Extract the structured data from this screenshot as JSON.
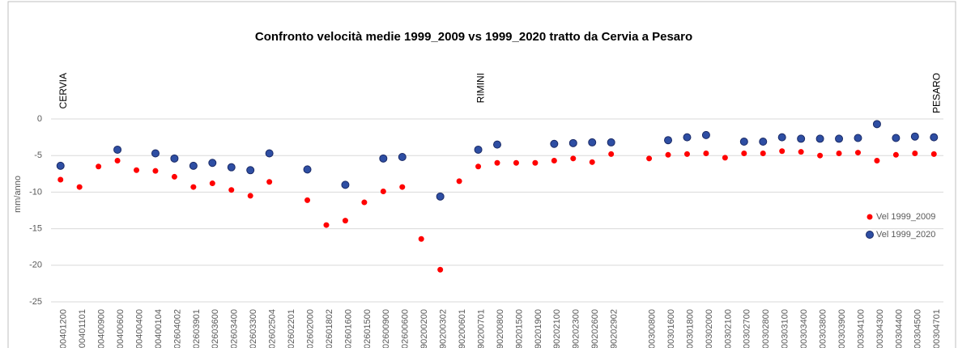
{
  "chart_data": {
    "type": "scatter",
    "title": "Confronto velocità medie 1999_2009 vs 1999_2020 tratto da Cervia a Pesaro",
    "y_label": "mm/anno",
    "annotations": [
      {
        "text": "CERVIA",
        "category_index": 0
      },
      {
        "text": "RIMINI",
        "category_index": 22
      },
      {
        "text": "PESARO",
        "category_index": 46
      }
    ],
    "categories": [
      "00401200",
      "00401101",
      "00400900",
      "00400600",
      "00400400",
      "00400104",
      "02604002",
      "02603901",
      "02603600",
      "02603400",
      "02603300",
      "02602504",
      "02602201",
      "02602000",
      "02601802",
      "02601600",
      "02601500",
      "02600900",
      "02600600",
      "90200200",
      "90200302",
      "90200601",
      "90200701",
      "90200800",
      "90201500",
      "90201900",
      "90202100",
      "90202300",
      "90202600",
      "90202902",
      null,
      "00300800",
      "00301600",
      "00301800",
      "00302000",
      "00302100",
      "00302700",
      "00302800",
      "00303100",
      "00303400",
      "00303800",
      "00303900",
      "00304100",
      "00304300",
      "00304400",
      "00304500",
      "00304701"
    ],
    "series": [
      {
        "name": "Vel 1999_2009",
        "color": "#ff0000",
        "values": [
          -8.3,
          -9.3,
          -6.5,
          -5.7,
          -7.0,
          -7.1,
          -7.9,
          -9.3,
          -8.8,
          -9.7,
          -10.5,
          -8.6,
          null,
          -11.1,
          -14.5,
          -13.9,
          -11.4,
          -9.9,
          -9.3,
          -16.4,
          -20.6,
          -8.5,
          -6.5,
          -6.0,
          -6.0,
          -6.0,
          -5.7,
          -5.4,
          -5.9,
          -4.8,
          null,
          -5.4,
          -4.9,
          -4.8,
          -4.7,
          -5.3,
          -4.7,
          -4.7,
          -4.4,
          -4.5,
          -5.0,
          -4.7,
          -4.6,
          -5.7,
          -4.9,
          -4.7,
          -4.8
        ]
      },
      {
        "name": "Vel 1999_2020",
        "color": "#2e4ea3",
        "values": [
          -6.4,
          null,
          null,
          -4.2,
          null,
          -4.7,
          -5.4,
          -6.4,
          -6.0,
          -6.6,
          -7.0,
          -4.7,
          null,
          -6.9,
          null,
          -9.0,
          null,
          -5.4,
          -5.2,
          null,
          -10.6,
          null,
          -4.2,
          -3.5,
          null,
          null,
          -3.4,
          -3.3,
          -3.2,
          -3.2,
          null,
          null,
          -2.9,
          -2.5,
          -2.2,
          null,
          -3.1,
          -3.1,
          -2.5,
          -2.7,
          -2.7,
          -2.7,
          -2.6,
          -0.7,
          -2.6,
          -2.4,
          -2.5
        ]
      }
    ],
    "ylim": [
      -25,
      0
    ],
    "yticks": [
      0,
      -5,
      -10,
      -15,
      -20,
      -25
    ],
    "grid": true,
    "legend": "right"
  }
}
